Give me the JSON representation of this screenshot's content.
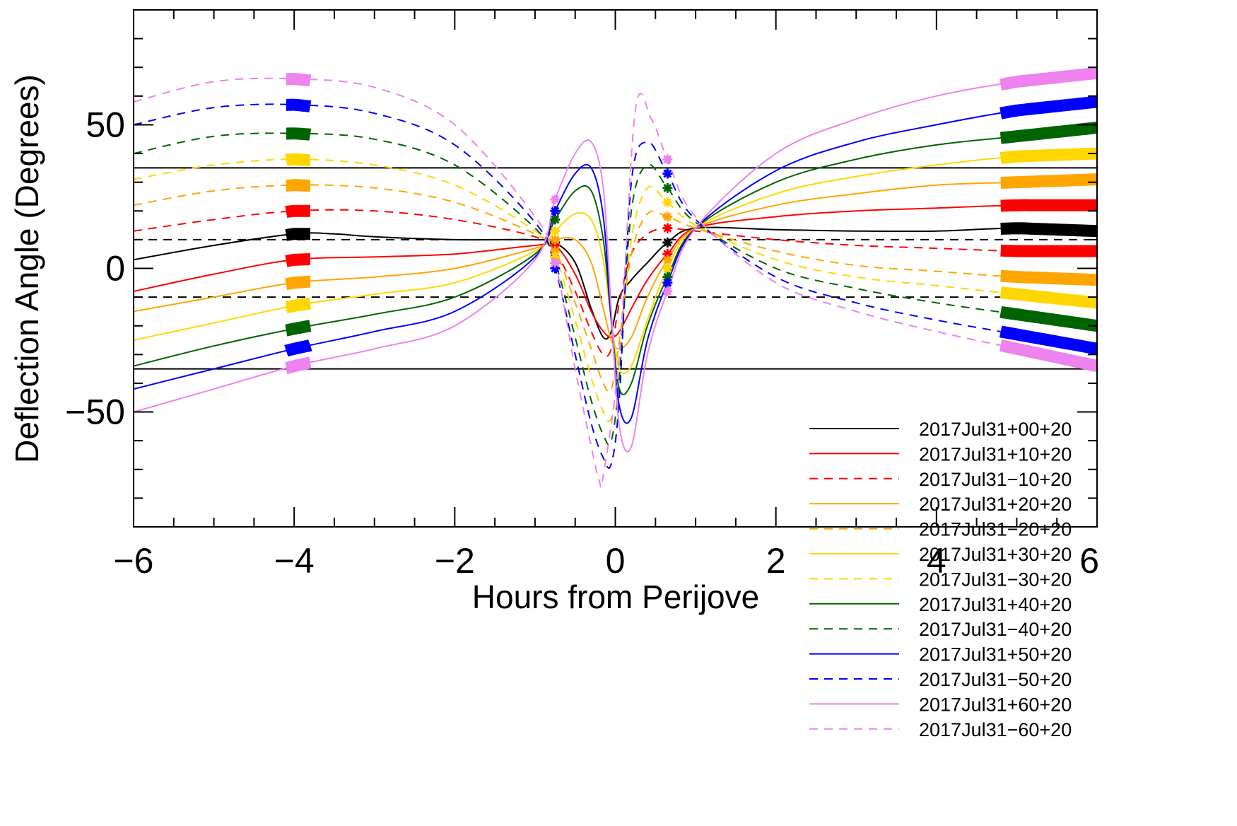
{
  "chart_data": {
    "type": "line",
    "title": "",
    "xlabel": "Hours from Perijove",
    "ylabel": "Deflection Angle (Degrees)",
    "xlim": [
      -6,
      6
    ],
    "ylim": [
      -90,
      90
    ],
    "xticks": [
      -6,
      -4,
      -2,
      0,
      2,
      4,
      6
    ],
    "xtick_labels": [
      "−6",
      "−4",
      "−2",
      "0",
      "2",
      "4",
      "6"
    ],
    "yticks": [
      -50,
      0,
      50
    ],
    "ytick_labels": [
      "−50",
      "0",
      "50"
    ],
    "grid": false,
    "legend_position": "bottom-right",
    "reference_lines": [
      {
        "y": 35,
        "style": "solid",
        "color": "#000000"
      },
      {
        "y": -35,
        "style": "solid",
        "color": "#000000"
      },
      {
        "y": 10,
        "style": "dashed",
        "color": "#000000"
      },
      {
        "y": -10,
        "style": "dashed",
        "color": "#000000"
      }
    ],
    "series": [
      {
        "name": "2017Jul31+00+20",
        "color": "#000000",
        "style": "solid",
        "x": [
          -6,
          -5,
          -4,
          -3.5,
          -3,
          -2,
          -1,
          -0.75,
          -0.5,
          -0.3,
          -0.15,
          -0.05,
          0.05,
          0.2,
          0.4,
          0.65,
          1,
          2,
          3,
          4,
          5,
          6
        ],
        "y": [
          3,
          8,
          12,
          12,
          11,
          10,
          10,
          9,
          2,
          -14,
          -24,
          -22,
          -10,
          -4,
          2,
          9,
          14,
          13.5,
          13,
          13,
          14,
          13
        ]
      },
      {
        "name": "2017Jul31+10+20",
        "color": "#ff0000",
        "style": "solid",
        "x": [
          -6,
          -5,
          -4,
          -3,
          -2,
          -1,
          -0.75,
          -0.5,
          -0.3,
          -0.15,
          -0.05,
          0.05,
          0.2,
          0.4,
          0.65,
          1,
          2,
          3,
          4,
          5,
          6
        ],
        "y": [
          -8,
          -2,
          3,
          4,
          5,
          8,
          8,
          -2,
          -15,
          -22,
          -24,
          -22,
          -14,
          -4,
          5,
          14,
          18,
          20,
          21,
          22,
          22
        ]
      },
      {
        "name": "2017Jul31−10+20",
        "color": "#ff0000",
        "style": "dashed",
        "x": [
          -6,
          -5,
          -4,
          -3,
          -2,
          -1,
          -0.75,
          -0.5,
          -0.3,
          -0.15,
          -0.05,
          0.05,
          0.2,
          0.4,
          0.65,
          1,
          2,
          3,
          4,
          5,
          6
        ],
        "y": [
          13,
          17,
          20,
          20,
          17,
          11,
          6,
          -8,
          -22,
          -30,
          -28,
          -12,
          5,
          12,
          14,
          13,
          10,
          8,
          7,
          6,
          6
        ]
      },
      {
        "name": "2017Jul31+20+20",
        "color": "#ffa500",
        "style": "solid",
        "x": [
          -6,
          -5,
          -4,
          -3,
          -2,
          -1,
          -0.75,
          -0.5,
          -0.3,
          -0.15,
          -0.05,
          0.05,
          0.2,
          0.4,
          0.65,
          1,
          2,
          3,
          4,
          5,
          6
        ],
        "y": [
          -15,
          -10,
          -5,
          -3,
          0,
          7,
          10,
          10,
          2,
          -14,
          -25,
          -28,
          -24,
          -10,
          3,
          14,
          22,
          26,
          29,
          30,
          31
        ]
      },
      {
        "name": "2017Jul31−20+20",
        "color": "#ffa500",
        "style": "dashed",
        "x": [
          -6,
          -5,
          -4,
          -3,
          -2,
          -1,
          -0.75,
          -0.5,
          -0.3,
          -0.15,
          -0.05,
          0.05,
          0.2,
          0.4,
          0.65,
          1,
          2,
          3,
          4,
          5,
          6
        ],
        "y": [
          22,
          27,
          29,
          28,
          23,
          12,
          6,
          -12,
          -28,
          -40,
          -42,
          -25,
          5,
          19,
          18,
          14,
          6,
          1,
          -1,
          -3,
          -4
        ]
      },
      {
        "name": "2017Jul31+30+20",
        "color": "#ffd700",
        "style": "solid",
        "x": [
          -6,
          -5,
          -4,
          -3,
          -2,
          -1,
          -0.75,
          -0.5,
          -0.3,
          -0.15,
          -0.05,
          0.05,
          0.2,
          0.4,
          0.65,
          1,
          2,
          3,
          4,
          5,
          6
        ],
        "y": [
          -25,
          -19,
          -13,
          -9,
          -5,
          6,
          13,
          19,
          17,
          3,
          -18,
          -35,
          -34,
          -18,
          0,
          14,
          26,
          32,
          36,
          39,
          40
        ]
      },
      {
        "name": "2017Jul31−30+20",
        "color": "#ffd700",
        "style": "dashed",
        "x": [
          -6,
          -5,
          -4,
          -3,
          -2,
          -1,
          -0.75,
          -0.5,
          -0.3,
          -0.15,
          -0.05,
          0.05,
          0.2,
          0.4,
          0.65,
          1,
          2,
          3,
          4,
          5,
          6
        ],
        "y": [
          31,
          36,
          38,
          36,
          29,
          13,
          4,
          -18,
          -38,
          -50,
          -52,
          -32,
          10,
          28,
          23,
          15,
          3,
          -3,
          -6,
          -9,
          -12
        ]
      },
      {
        "name": "2017Jul31+40+20",
        "color": "#006400",
        "style": "solid",
        "x": [
          -6,
          -5,
          -4,
          -3,
          -2,
          -1,
          -0.75,
          -0.5,
          -0.3,
          -0.15,
          -0.05,
          0.05,
          0.2,
          0.4,
          0.65,
          1,
          2,
          3,
          4,
          5,
          6
        ],
        "y": [
          -34,
          -27,
          -21,
          -16,
          -10,
          5,
          17,
          27,
          27,
          10,
          -18,
          -42,
          -40,
          -20,
          -3,
          14,
          30,
          38,
          43,
          46,
          49
        ]
      },
      {
        "name": "2017Jul31−40+20",
        "color": "#006400",
        "style": "dashed",
        "x": [
          -6,
          -5,
          -4,
          -3,
          -2,
          -1,
          -0.75,
          -0.5,
          -0.3,
          -0.15,
          -0.05,
          0.05,
          0.2,
          0.4,
          0.65,
          1,
          2,
          3,
          4,
          5,
          6
        ],
        "y": [
          40,
          46,
          47,
          45,
          36,
          14,
          2,
          -24,
          -46,
          -58,
          -60,
          -38,
          20,
          36,
          28,
          16,
          0,
          -7,
          -12,
          -16,
          -20
        ]
      },
      {
        "name": "2017Jul31+50+20",
        "color": "#0000ff",
        "style": "solid",
        "x": [
          -6,
          -5,
          -4,
          -3,
          -2,
          -1,
          -0.75,
          -0.5,
          -0.3,
          -0.15,
          -0.05,
          0.05,
          0.2,
          0.4,
          0.65,
          1,
          2,
          3,
          4,
          5,
          6
        ],
        "y": [
          -42,
          -35,
          -28,
          -22,
          -15,
          4,
          20,
          33,
          35,
          18,
          -18,
          -48,
          -52,
          -25,
          -5,
          14,
          34,
          44,
          50,
          55,
          58
        ]
      },
      {
        "name": "2017Jul31−50+20",
        "color": "#0000ff",
        "style": "dashed",
        "x": [
          -6,
          -5,
          -4,
          -3,
          -2,
          -1,
          -0.75,
          -0.5,
          -0.3,
          -0.15,
          -0.05,
          0.05,
          0.2,
          0.4,
          0.65,
          1,
          2,
          3,
          4,
          5,
          6
        ],
        "y": [
          50,
          56,
          57,
          54,
          43,
          16,
          0,
          -30,
          -54,
          -66,
          -68,
          -45,
          30,
          44,
          33,
          17,
          -3,
          -12,
          -18,
          -23,
          -28
        ]
      },
      {
        "name": "2017Jul31+60+20",
        "color": "#ee82ee",
        "style": "solid",
        "x": [
          -6,
          -5,
          -4,
          -3,
          -2,
          -1,
          -0.75,
          -0.5,
          -0.3,
          -0.15,
          -0.05,
          0.05,
          0.2,
          0.4,
          0.65,
          1,
          2,
          3,
          4,
          5,
          6
        ],
        "y": [
          -50,
          -42,
          -34,
          -28,
          -20,
          3,
          24,
          40,
          44,
          28,
          -15,
          -55,
          -62,
          -30,
          -8,
          14,
          40,
          52,
          60,
          65,
          68
        ]
      },
      {
        "name": "2017Jul31−60+20",
        "color": "#ee82ee",
        "style": "dashed",
        "x": [
          -6,
          -5,
          -4,
          -3,
          -2,
          -1,
          -0.75,
          -0.5,
          -0.3,
          -0.2,
          -0.15,
          0.05,
          0.25,
          0.45,
          0.65,
          1,
          2,
          3,
          4,
          5,
          6
        ],
        "y": [
          58,
          65,
          66,
          63,
          50,
          18,
          2,
          -35,
          -62,
          -74,
          -72,
          -30,
          55,
          52,
          38,
          18,
          -5,
          -15,
          -22,
          -28,
          -34
        ]
      }
    ],
    "marker_bands": [
      {
        "x0": -4.1,
        "x1": -3.8
      },
      {
        "x0": 4.8,
        "x1": 6
      }
    ],
    "marker_points_x": [
      -0.75,
      0.65
    ]
  }
}
